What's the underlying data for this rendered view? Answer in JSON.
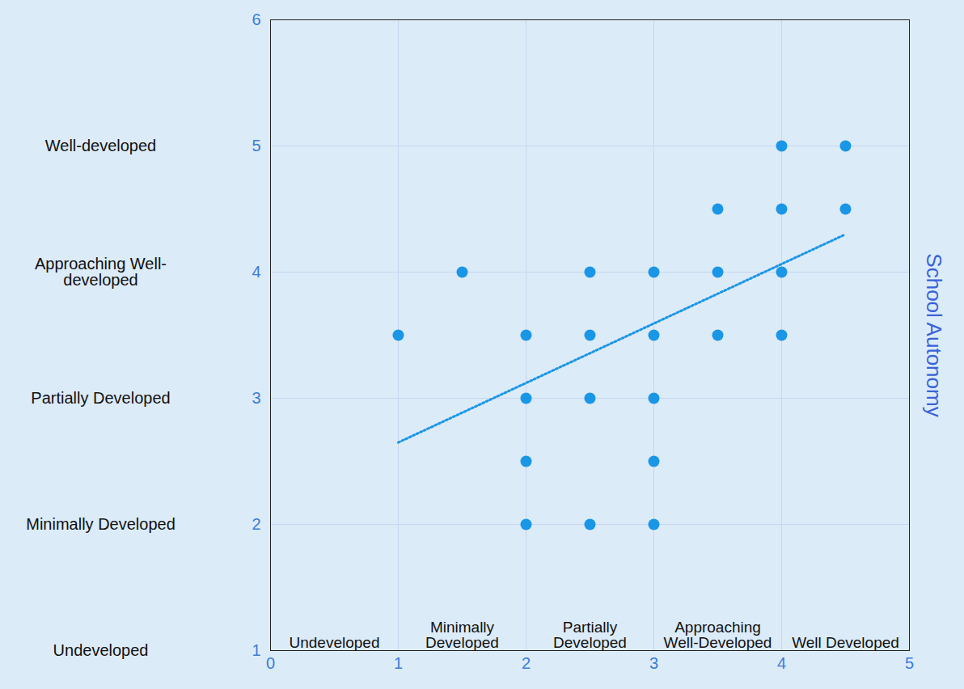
{
  "chart_data": {
    "type": "scatter",
    "x": [
      1,
      1.5,
      2,
      2,
      2,
      2,
      2.5,
      2.5,
      2.5,
      2.5,
      3,
      3,
      3,
      3,
      3,
      3.5,
      3.5,
      3.5,
      4,
      4,
      4,
      4,
      4.5,
      4.5
    ],
    "values": [
      3.5,
      4,
      3.5,
      3,
      2.5,
      2,
      4,
      3.5,
      3,
      2,
      4,
      3.5,
      3,
      2.5,
      2,
      4.5,
      4,
      3.5,
      5,
      4.5,
      4,
      3.5,
      5,
      4.5
    ],
    "color": "#1a96e6",
    "marker": "circle",
    "xlim": [
      0,
      5
    ],
    "ylim": [
      1,
      6
    ],
    "xticks": [
      0,
      1,
      2,
      3,
      4,
      5
    ],
    "yticks": [
      1,
      2,
      3,
      4,
      5,
      6
    ],
    "grid": true,
    "ylabel": "School Autonomy",
    "x_category_labels": [
      {
        "value": 0.5,
        "label": "Undeveloped"
      },
      {
        "value": 1.5,
        "label": "Minimally Developed"
      },
      {
        "value": 2.5,
        "label": "Partially Developed"
      },
      {
        "value": 3.5,
        "label": "Approaching Well-Developed"
      },
      {
        "value": 4.5,
        "label": "Well Developed"
      }
    ],
    "y_category_labels": [
      {
        "value": 1,
        "label": "Undeveloped"
      },
      {
        "value": 2,
        "label": "Minimally Developed"
      },
      {
        "value": 3,
        "label": "Partially Developed"
      },
      {
        "value": 4,
        "label": "Approaching Well-developed"
      },
      {
        "value": 5,
        "label": "Well-developed"
      }
    ],
    "trendline": {
      "x": [
        1,
        4.5
      ],
      "values": [
        2.65,
        4.3
      ],
      "line_style": "dotted"
    }
  }
}
